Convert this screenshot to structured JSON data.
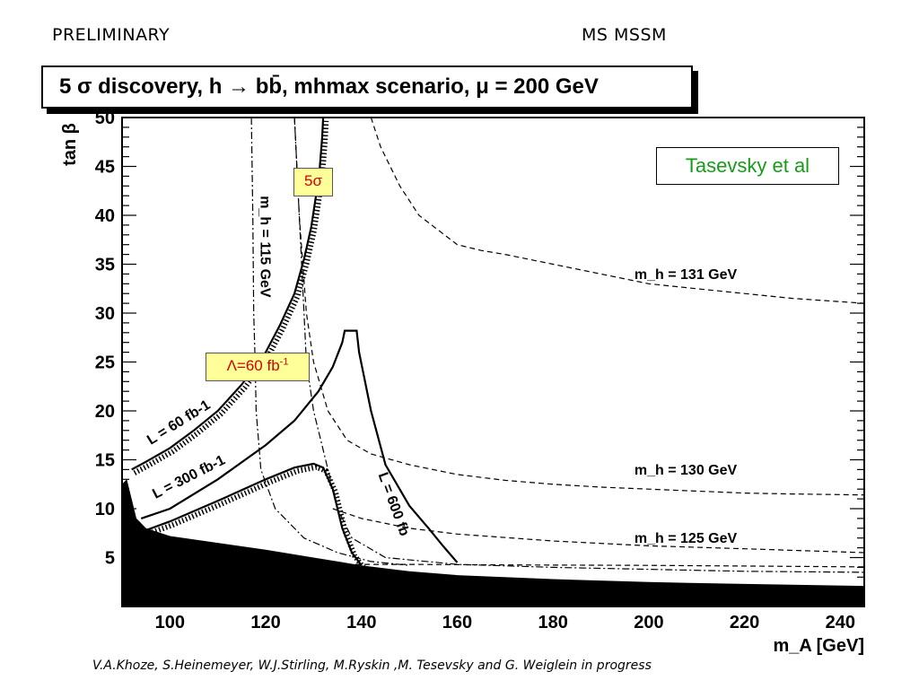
{
  "header": {
    "preliminary": "PRELIMINARY",
    "model": "MS  MSSM"
  },
  "title_box": {
    "text": "5 σ discovery, h → bb̄, mhmax scenario, μ = 200 GeV"
  },
  "annotations": {
    "author_tag": "Tasevsky et al",
    "five_sigma": "5σ",
    "lumi_label": "Λ=60 fb",
    "lumi_exponent": "-1"
  },
  "footer": "V.A.Khoze, S.Heinemeyer, W.J.Stirling, M.Ryskin ,M. Tesevsky and G. Weiglein  in progress",
  "chart_data": {
    "type": "line",
    "xlabel": "m_A [GeV]",
    "ylabel": "tan β",
    "xlim": [
      90,
      245
    ],
    "ylim": [
      0,
      50
    ],
    "x_ticks": [
      100,
      120,
      140,
      160,
      180,
      200,
      220,
      240
    ],
    "y_ticks": [
      5,
      10,
      15,
      20,
      25,
      30,
      35,
      40,
      45,
      50
    ],
    "grid": false,
    "colors": {
      "excluded_region": "#000000",
      "author_tag": "#1a9a1a",
      "highlight": "#ffff99",
      "highlight_text": "#d40000"
    },
    "excluded_region": {
      "x": [
        90,
        91,
        92,
        93,
        95,
        100,
        110,
        120,
        130,
        140,
        150,
        160,
        180,
        200,
        220,
        245,
        245,
        90
      ],
      "y": [
        12.5,
        13,
        11,
        9,
        8,
        7.2,
        6.5,
        5.8,
        5,
        4.2,
        3.6,
        3.2,
        2.8,
        2.5,
        2.3,
        2.1,
        0,
        0
      ]
    },
    "series": [
      {
        "name": "L = 60 fb-1",
        "style": "solid",
        "x": [
          92,
          95,
          100,
          105,
          110,
          115,
          120,
          123,
          126,
          128,
          129.5,
          130.5,
          131.3,
          131.8,
          132
        ],
        "y": [
          14,
          14.8,
          16.2,
          18,
          20,
          22.7,
          26,
          28.8,
          32,
          35.5,
          38.8,
          42,
          45,
          48,
          50
        ]
      },
      {
        "name": "L = 300 fb-1",
        "style": "solid",
        "x": [
          94,
          100,
          110,
          120,
          126,
          131,
          134,
          136,
          136.5,
          139,
          139.5,
          142,
          145,
          150,
          154,
          157,
          160
        ],
        "y": [
          9,
          10,
          13,
          16.5,
          19,
          22,
          24.5,
          27,
          28.2,
          28.2,
          26,
          20,
          14.5,
          10.3,
          8,
          6.2,
          4.5
        ]
      },
      {
        "name": "L = 600 fb-1",
        "style": "solid",
        "x": [
          95,
          100,
          110,
          120,
          126,
          130,
          132,
          134,
          136,
          138,
          140
        ],
        "y": [
          7.8,
          8.7,
          10.8,
          13,
          14.2,
          14.6,
          14.2,
          12,
          8,
          5.5,
          4.2
        ]
      },
      {
        "name": "m_h = 115 GeV",
        "style": "dashdot",
        "x": [
          117,
          117.3,
          117.5,
          117.8,
          118,
          119,
          122,
          128,
          135,
          142,
          150
        ],
        "y": [
          50,
          40,
          30,
          25,
          20,
          14,
          10,
          7,
          5.5,
          4.6,
          4.2
        ]
      },
      {
        "name": "",
        "style": "dashdot",
        "x": [
          126,
          127.5,
          128.5,
          130,
          132.5,
          135,
          138,
          145,
          160,
          180,
          200,
          220,
          245
        ],
        "y": [
          50,
          35,
          25,
          20,
          15,
          10,
          7,
          5,
          4.3,
          4,
          3.8,
          3.6,
          3.5
        ]
      },
      {
        "name": "m_h = 125 GeV",
        "style": "dashed",
        "x": [
          134,
          140,
          150,
          160,
          180,
          200,
          220,
          245
        ],
        "y": [
          10,
          9,
          8,
          7.4,
          6.7,
          6.2,
          5.9,
          5.5
        ]
      },
      {
        "name": "",
        "style": "dashed",
        "x": [
          120,
          130,
          140,
          150,
          170,
          200,
          230,
          245
        ],
        "y": [
          4.3,
          4.3,
          4.3,
          4.3,
          4.25,
          4.2,
          4.1,
          4.05
        ]
      },
      {
        "name": "m_h = 130 GeV",
        "style": "dashed",
        "x": [
          126,
          127,
          128.5,
          130,
          133,
          137,
          142,
          150,
          160,
          170,
          180,
          190,
          200,
          210,
          220,
          230,
          245
        ],
        "y": [
          50,
          40,
          30,
          25,
          20,
          17,
          15.6,
          14.5,
          13.5,
          12.9,
          12.5,
          12.2,
          12,
          11.8,
          11.6,
          11.5,
          11.4
        ]
      },
      {
        "name": "m_h = 131 GeV",
        "style": "dashed",
        "x": [
          142,
          144,
          148,
          152,
          156,
          160,
          165,
          170,
          175,
          180,
          190,
          200,
          210,
          220,
          230,
          245
        ],
        "y": [
          50,
          47,
          43,
          40,
          38.5,
          37,
          36.4,
          36,
          35.5,
          35,
          34,
          33,
          32.5,
          32,
          31.5,
          31
        ]
      }
    ],
    "curve_labels": [
      "L = 60 fb-1",
      "L = 300 fb-1",
      "L = 600 fb",
      "m_h = 115 GeV",
      "m_h = 131 GeV",
      "m_h = 130 GeV",
      "m_h = 125 GeV"
    ]
  }
}
